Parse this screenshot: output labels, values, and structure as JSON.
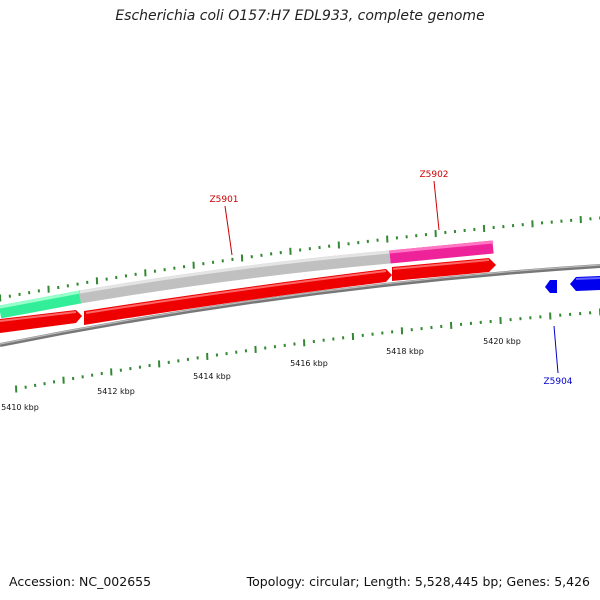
{
  "title": "Escherichia coli O157:H7 EDL933, complete genome",
  "footer": {
    "accession": "Accession: NC_002655",
    "summary": "Topology: circular; Length: 5,528,445 bp; Genes: 5,426"
  },
  "scale_labels": [
    "5410 kbp",
    "5412 kbp",
    "5414 kbp",
    "5416 kbp",
    "5418 kbp",
    "5420 kbp"
  ],
  "gene_labels": [
    {
      "name": "Z5901",
      "color": "#cc0000"
    },
    {
      "name": "Z5902",
      "color": "#cc0000"
    },
    {
      "name": "Z5904",
      "color": "#0000cc"
    }
  ],
  "colors": {
    "forward_cds": "#ee0000",
    "reverse_cds": "#0000ee",
    "teal_feature": "#33ee99",
    "gray_feature": "#c0c0c0",
    "pink_feature": "#ee2299",
    "backbone": "#888888",
    "ticks": "#338833"
  }
}
